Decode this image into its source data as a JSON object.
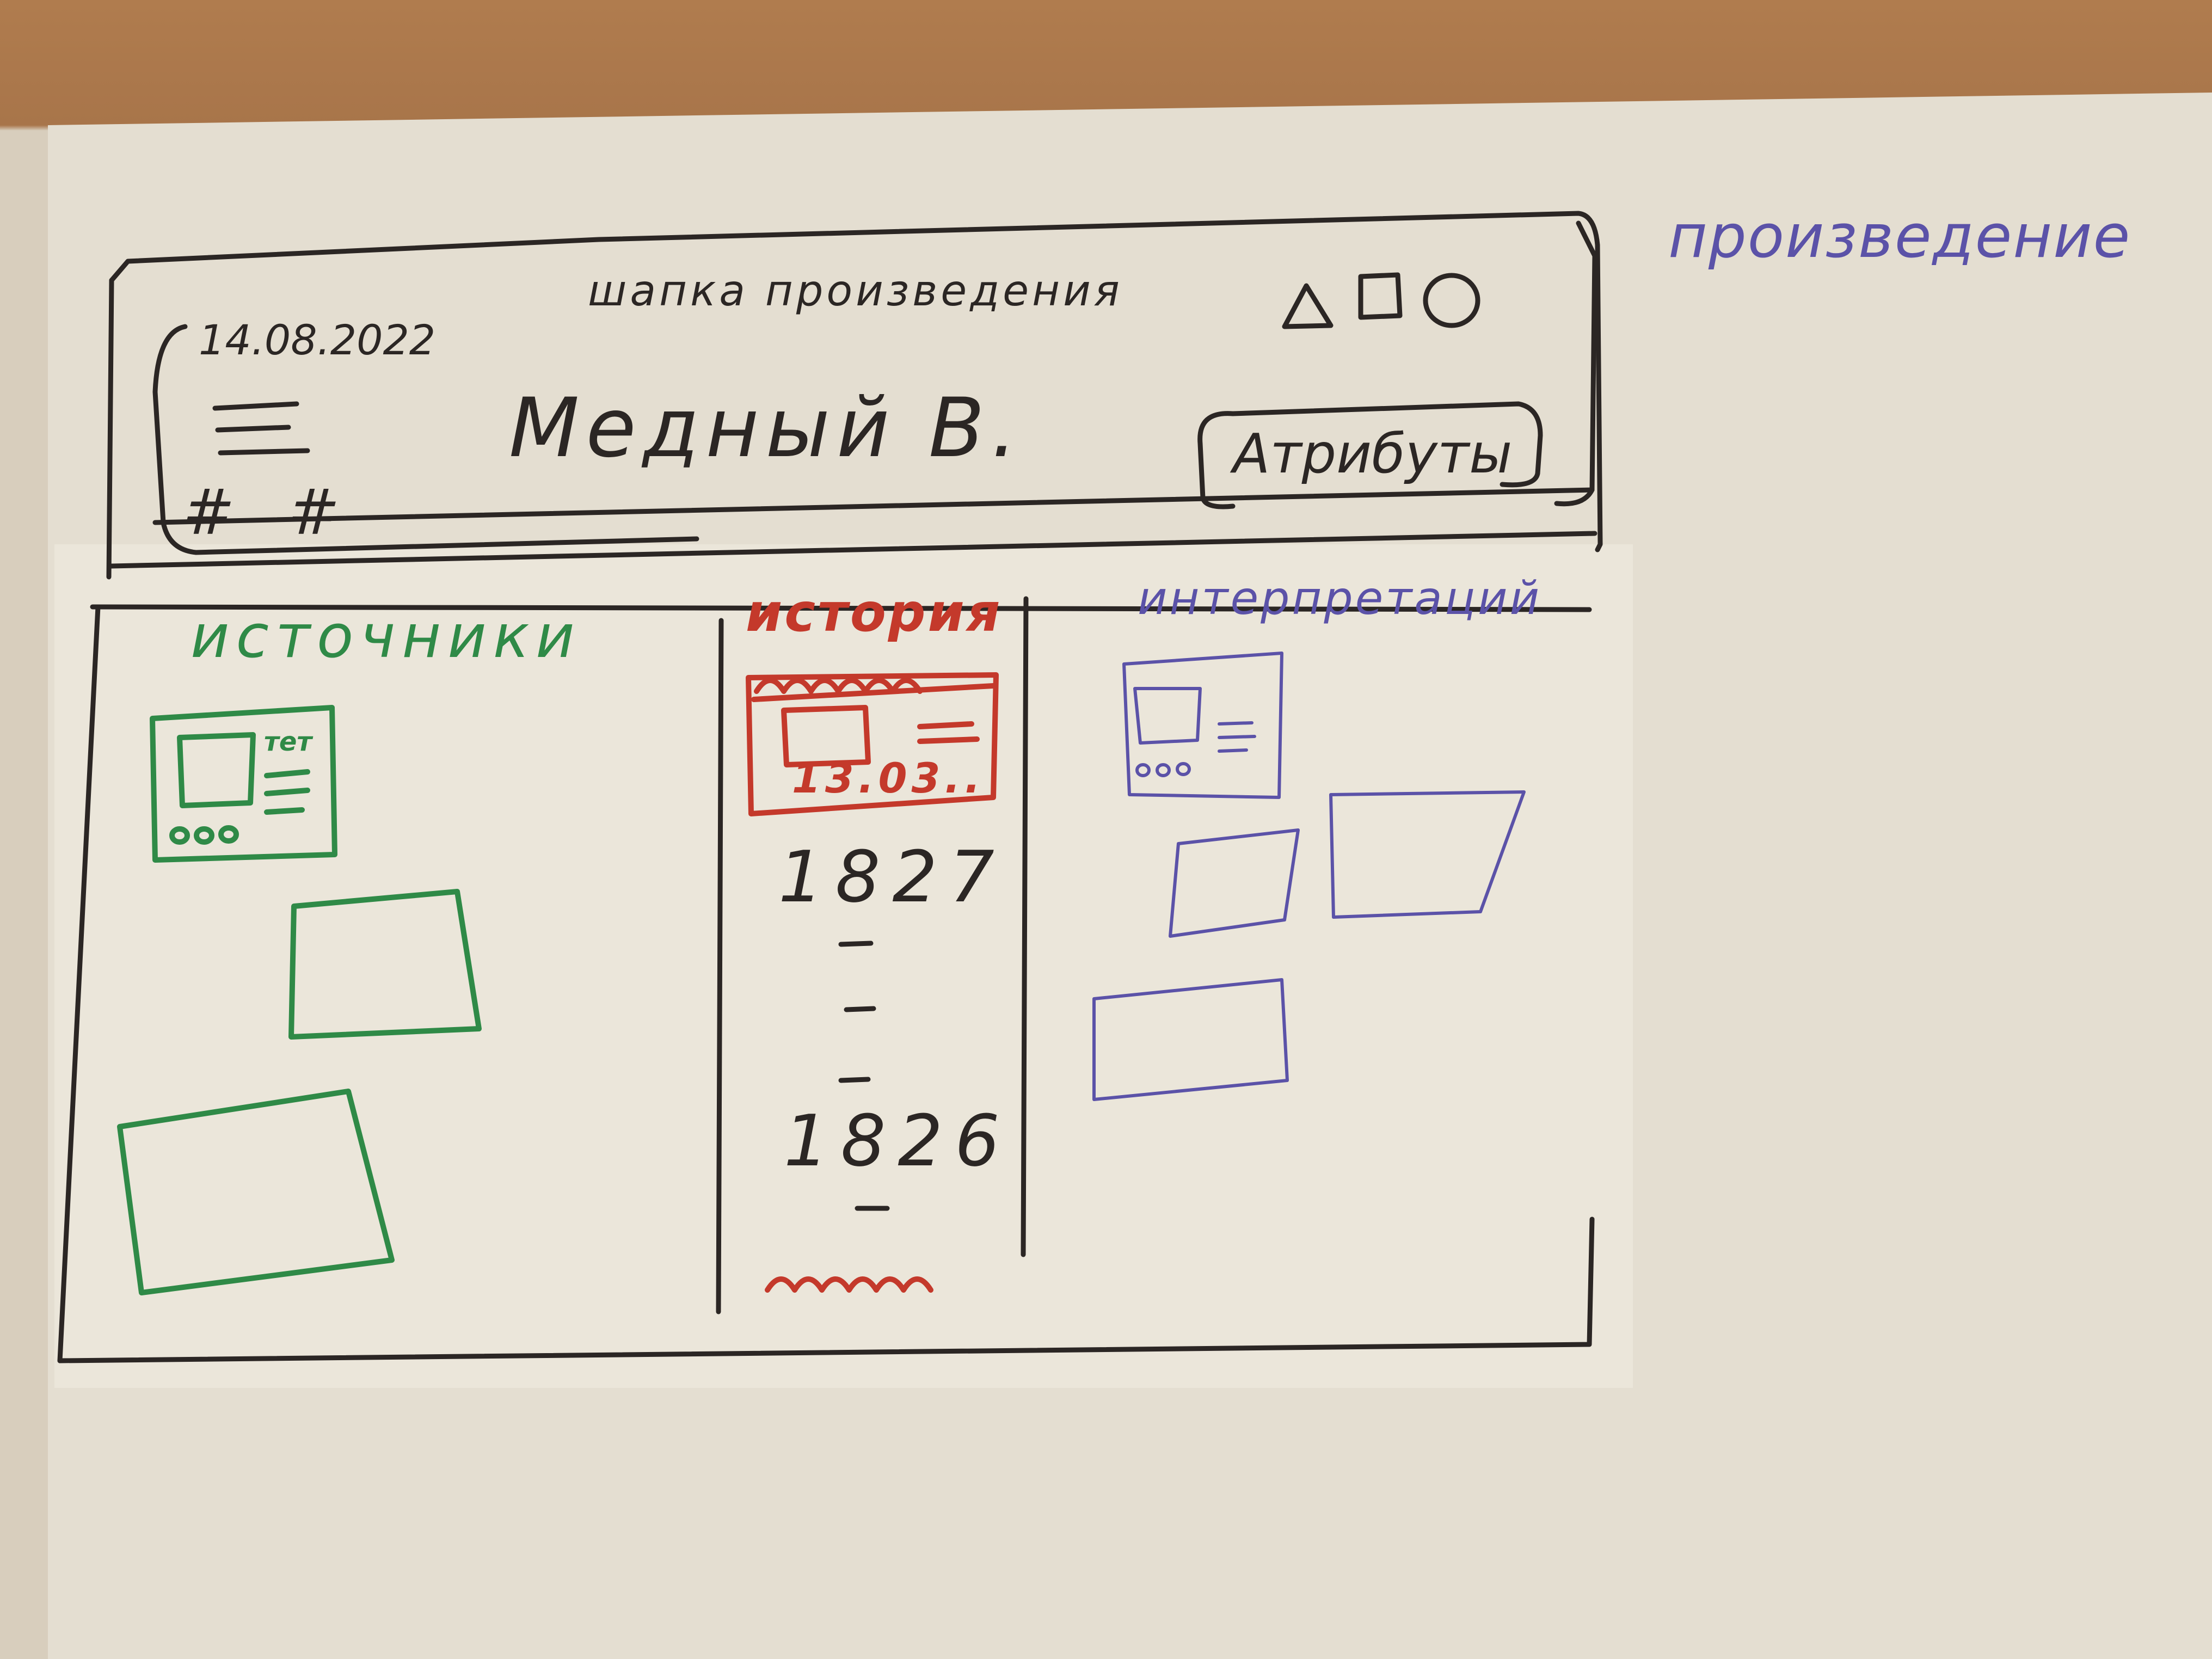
{
  "side_note": "произведение",
  "header": {
    "title": "шапка произведения",
    "date": "14.08.2022",
    "author": "Медный В.",
    "attributes_button": "Атрибуты",
    "hash_marks": "# #",
    "icons": [
      "triangle-icon",
      "square-icon",
      "circle-icon"
    ]
  },
  "columns": {
    "sources": {
      "title": "источники"
    },
    "history": {
      "title": "история",
      "card_date": "13.03..",
      "timeline": [
        "1827",
        "1826"
      ]
    },
    "interpretations": {
      "title": "интерпретаций"
    }
  },
  "card_label": "тет",
  "colors": {
    "black": "#2b2624",
    "green": "#2f8a47",
    "red": "#c4392b",
    "blue": "#5b52a8",
    "paper": "#ebe6da"
  }
}
